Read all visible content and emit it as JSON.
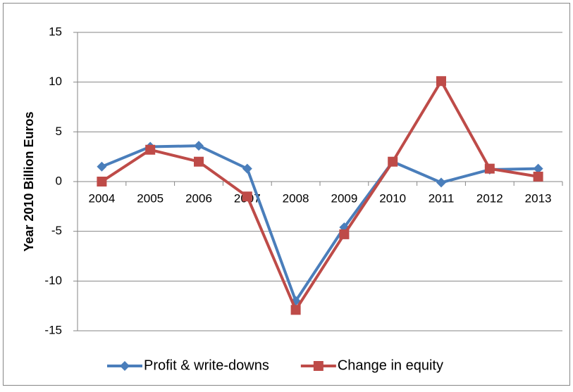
{
  "chart_data": {
    "type": "line",
    "y_label": "Year 2010 Billion Euros",
    "categories": [
      "2004",
      "2005",
      "2006",
      "2007",
      "2008",
      "2009",
      "2010",
      "2011",
      "2012",
      "2013"
    ],
    "series": [
      {
        "name": "Profit & write-downs",
        "color": "#4a7ebb",
        "marker": "diamond",
        "values": [
          1.5,
          3.5,
          3.6,
          1.3,
          -12.0,
          -4.6,
          2.0,
          -0.1,
          1.2,
          1.3
        ]
      },
      {
        "name": "Change in equity",
        "color": "#be4b48",
        "marker": "square",
        "values": [
          0,
          3.2,
          2.0,
          -1.5,
          -12.9,
          -5.3,
          2.0,
          10.1,
          1.3,
          0.5
        ]
      }
    ],
    "ylim": [
      -15,
      15
    ],
    "yticks": [
      -15,
      -10,
      -5,
      0,
      5,
      10,
      15
    ],
    "grid": true,
    "legend": "bottom"
  }
}
